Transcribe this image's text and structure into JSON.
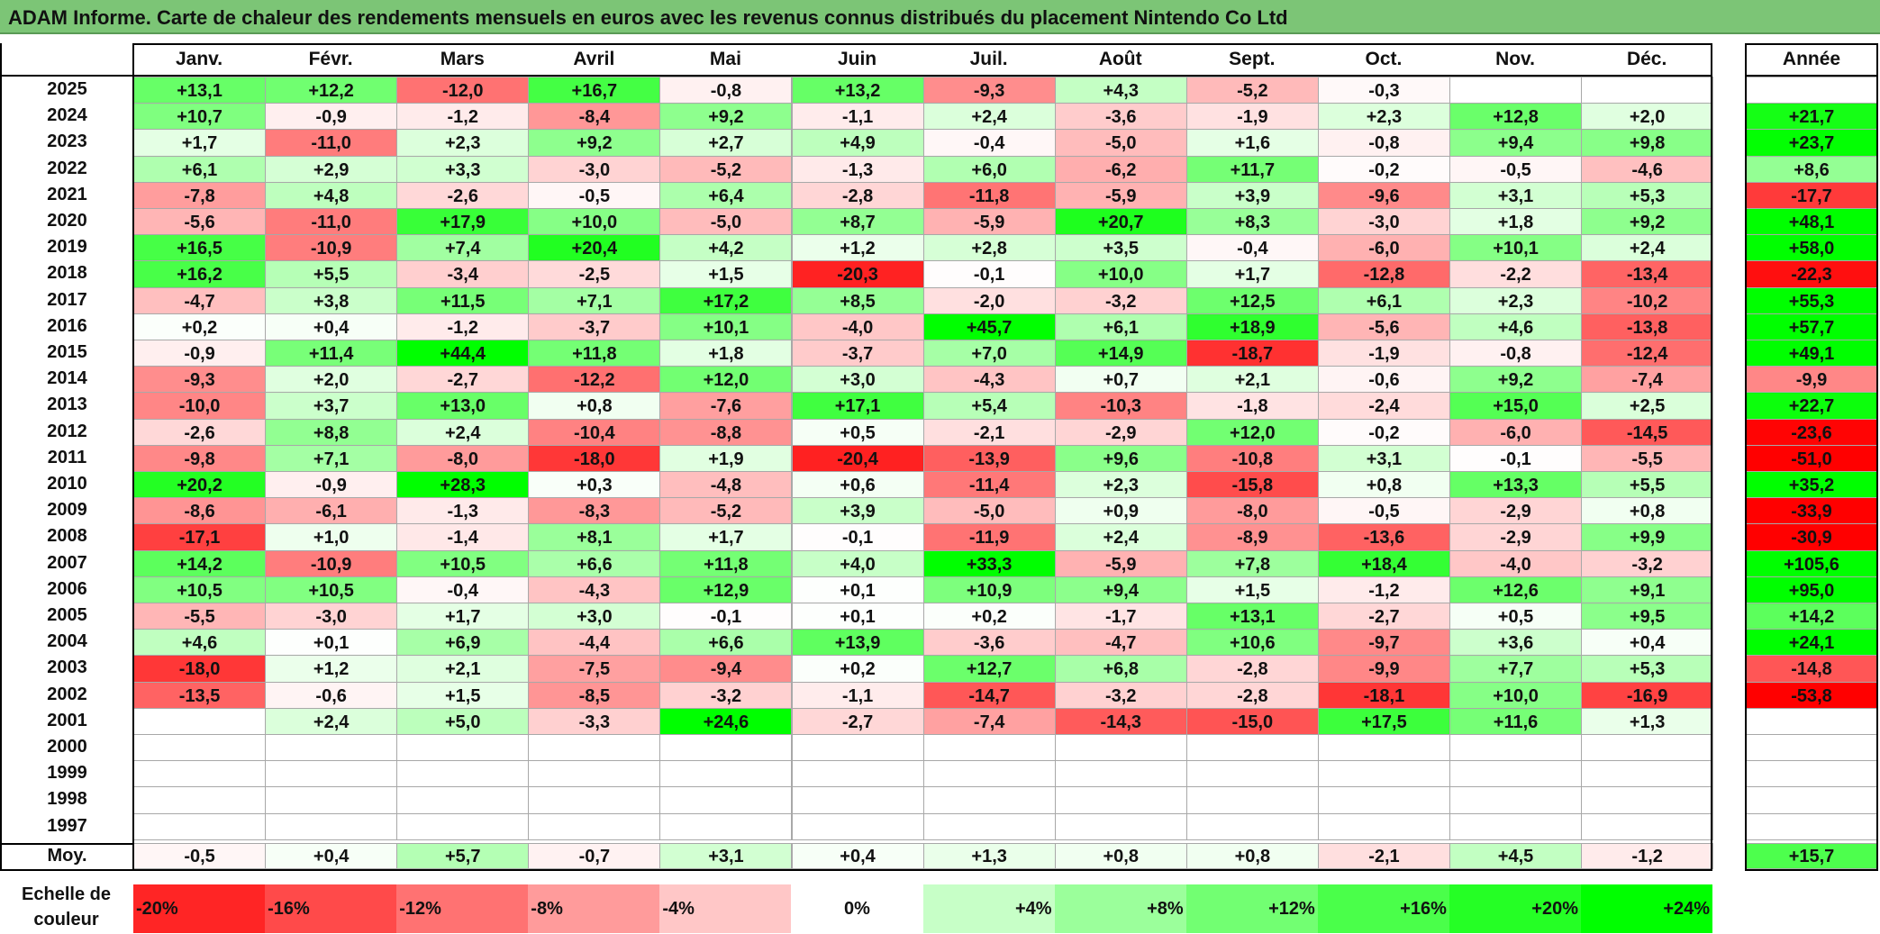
{
  "title": "ADAM Informe. Carte de chaleur des rendements mensuels en euros avec les revenus connus distribués du placement Nintendo Co Ltd",
  "colors": {
    "title_bg": "#7cc576",
    "positive": "#00ff00",
    "negative": "#ff0000",
    "neutral": "#ffffff"
  },
  "chart_data": {
    "type": "heatmap",
    "title": "ADAM Informe. Carte de chaleur des rendements mensuels en euros avec les revenus connus distribués du placement Nintendo Co Ltd",
    "columns": [
      "Janv.",
      "Févr.",
      "Mars",
      "Avril",
      "Mai",
      "Juin",
      "Juil.",
      "Août",
      "Sept.",
      "Oct.",
      "Nov.",
      "Déc."
    ],
    "year_column_label": "Année",
    "rows": [
      {
        "year": "2025",
        "values": [
          "+13,1",
          "+12,2",
          "-12,0",
          "+16,7",
          "-0,8",
          "+13,2",
          "-9,3",
          "+4,3",
          "-5,2",
          "-0,3",
          "",
          ""
        ],
        "annual": ""
      },
      {
        "year": "2024",
        "values": [
          "+10,7",
          "-0,9",
          "-1,2",
          "-8,4",
          "+9,2",
          "-1,1",
          "+2,4",
          "-3,6",
          "-1,9",
          "+2,3",
          "+12,8",
          "+2,0"
        ],
        "annual": "+21,7"
      },
      {
        "year": "2023",
        "values": [
          "+1,7",
          "-11,0",
          "+2,3",
          "+9,2",
          "+2,7",
          "+4,9",
          "-0,4",
          "-5,0",
          "+1,6",
          "-0,8",
          "+9,4",
          "+9,8"
        ],
        "annual": "+23,7"
      },
      {
        "year": "2022",
        "values": [
          "+6,1",
          "+2,9",
          "+3,3",
          "-3,0",
          "-5,2",
          "-1,3",
          "+6,0",
          "-6,2",
          "+11,7",
          "-0,2",
          "-0,5",
          "-4,6"
        ],
        "annual": "+8,6"
      },
      {
        "year": "2021",
        "values": [
          "-7,8",
          "+4,8",
          "-2,6",
          "-0,5",
          "+6,4",
          "-2,8",
          "-11,8",
          "-5,9",
          "+3,9",
          "-9,6",
          "+3,1",
          "+5,3"
        ],
        "annual": "-17,7"
      },
      {
        "year": "2020",
        "values": [
          "-5,6",
          "-11,0",
          "+17,9",
          "+10,0",
          "-5,0",
          "+8,7",
          "-5,9",
          "+20,7",
          "+8,3",
          "-3,0",
          "+1,8",
          "+9,2"
        ],
        "annual": "+48,1"
      },
      {
        "year": "2019",
        "values": [
          "+16,5",
          "-10,9",
          "+7,4",
          "+20,4",
          "+4,2",
          "+1,2",
          "+2,8",
          "+3,5",
          "-0,4",
          "-6,0",
          "+10,1",
          "+2,4"
        ],
        "annual": "+58,0"
      },
      {
        "year": "2018",
        "values": [
          "+16,2",
          "+5,5",
          "-3,4",
          "-2,5",
          "+1,5",
          "-20,3",
          "-0,1",
          "+10,0",
          "+1,7",
          "-12,8",
          "-2,2",
          "-13,4"
        ],
        "annual": "-22,3"
      },
      {
        "year": "2017",
        "values": [
          "-4,7",
          "+3,8",
          "+11,5",
          "+7,1",
          "+17,2",
          "+8,5",
          "-2,0",
          "-3,2",
          "+12,5",
          "+6,1",
          "+2,3",
          "-10,2"
        ],
        "annual": "+55,3"
      },
      {
        "year": "2016",
        "values": [
          "+0,2",
          "+0,4",
          "-1,2",
          "-3,7",
          "+10,1",
          "-4,0",
          "+45,7",
          "+6,1",
          "+18,9",
          "-5,6",
          "+4,6",
          "-13,8"
        ],
        "annual": "+57,7"
      },
      {
        "year": "2015",
        "values": [
          "-0,9",
          "+11,4",
          "+44,4",
          "+11,8",
          "+1,8",
          "-3,7",
          "+7,0",
          "+14,9",
          "-18,7",
          "-1,9",
          "-0,8",
          "-12,4"
        ],
        "annual": "+49,1"
      },
      {
        "year": "2014",
        "values": [
          "-9,3",
          "+2,0",
          "-2,7",
          "-12,2",
          "+12,0",
          "+3,0",
          "-4,3",
          "+0,7",
          "+2,1",
          "-0,6",
          "+9,2",
          "-7,4"
        ],
        "annual": "-9,9"
      },
      {
        "year": "2013",
        "values": [
          "-10,0",
          "+3,7",
          "+13,0",
          "+0,8",
          "-7,6",
          "+17,1",
          "+5,4",
          "-10,3",
          "-1,8",
          "-2,4",
          "+15,0",
          "+2,5"
        ],
        "annual": "+22,7"
      },
      {
        "year": "2012",
        "values": [
          "-2,6",
          "+8,8",
          "+2,4",
          "-10,4",
          "-8,8",
          "+0,5",
          "-2,1",
          "-2,9",
          "+12,0",
          "-0,2",
          "-6,0",
          "-14,5"
        ],
        "annual": "-23,6"
      },
      {
        "year": "2011",
        "values": [
          "-9,8",
          "+7,1",
          "-8,0",
          "-18,0",
          "+1,9",
          "-20,4",
          "-13,9",
          "+9,6",
          "-10,8",
          "+3,1",
          "-0,1",
          "-5,5"
        ],
        "annual": "-51,0"
      },
      {
        "year": "2010",
        "values": [
          "+20,2",
          "-0,9",
          "+28,3",
          "+0,3",
          "-4,8",
          "+0,6",
          "-11,4",
          "+2,3",
          "-15,8",
          "+0,8",
          "+13,3",
          "+5,5"
        ],
        "annual": "+35,2"
      },
      {
        "year": "2009",
        "values": [
          "-8,6",
          "-6,1",
          "-1,3",
          "-8,3",
          "-5,2",
          "+3,9",
          "-5,0",
          "+0,9",
          "-8,0",
          "-0,5",
          "-2,9",
          "+0,8"
        ],
        "annual": "-33,9"
      },
      {
        "year": "2008",
        "values": [
          "-17,1",
          "+1,0",
          "-1,4",
          "+8,1",
          "+1,7",
          "-0,1",
          "-11,9",
          "+2,4",
          "-8,9",
          "-13,6",
          "-2,9",
          "+9,9"
        ],
        "annual": "-30,9"
      },
      {
        "year": "2007",
        "values": [
          "+14,2",
          "-10,9",
          "+10,5",
          "+6,6",
          "+11,8",
          "+4,0",
          "+33,3",
          "-5,9",
          "+7,8",
          "+18,4",
          "-4,0",
          "-3,2"
        ],
        "annual": "+105,6"
      },
      {
        "year": "2006",
        "values": [
          "+10,5",
          "+10,5",
          "-0,4",
          "-4,3",
          "+12,9",
          "+0,1",
          "+10,9",
          "+9,4",
          "+1,5",
          "-1,2",
          "+12,6",
          "+9,1"
        ],
        "annual": "+95,0"
      },
      {
        "year": "2005",
        "values": [
          "-5,5",
          "-3,0",
          "+1,7",
          "+3,0",
          "-0,1",
          "+0,1",
          "+0,2",
          "-1,7",
          "+13,1",
          "-2,7",
          "+0,5",
          "+9,5"
        ],
        "annual": "+14,2"
      },
      {
        "year": "2004",
        "values": [
          "+4,6",
          "+0,1",
          "+6,9",
          "-4,4",
          "+6,6",
          "+13,9",
          "-3,6",
          "-4,7",
          "+10,6",
          "-9,7",
          "+3,6",
          "+0,4"
        ],
        "annual": "+24,1"
      },
      {
        "year": "2003",
        "values": [
          "-18,0",
          "+1,2",
          "+2,1",
          "-7,5",
          "-9,4",
          "+0,2",
          "+12,7",
          "+6,8",
          "-2,8",
          "-9,9",
          "+7,7",
          "+5,3"
        ],
        "annual": "-14,8"
      },
      {
        "year": "2002",
        "values": [
          "-13,5",
          "-0,6",
          "+1,5",
          "-8,5",
          "-3,2",
          "-1,1",
          "-14,7",
          "-3,2",
          "-2,8",
          "-18,1",
          "+10,0",
          "-16,9"
        ],
        "annual": "-53,8"
      },
      {
        "year": "2001",
        "values": [
          "",
          "+2,4",
          "+5,0",
          "-3,3",
          "+24,6",
          "-2,7",
          "-7,4",
          "-14,3",
          "-15,0",
          "+17,5",
          "+11,6",
          "+1,3"
        ],
        "annual": ""
      },
      {
        "year": "2000",
        "values": [
          "",
          "",
          "",
          "",
          "",
          "",
          "",
          "",
          "",
          "",
          "",
          ""
        ],
        "annual": ""
      },
      {
        "year": "1999",
        "values": [
          "",
          "",
          "",
          "",
          "",
          "",
          "",
          "",
          "",
          "",
          "",
          ""
        ],
        "annual": ""
      },
      {
        "year": "1998",
        "values": [
          "",
          "",
          "",
          "",
          "",
          "",
          "",
          "",
          "",
          "",
          "",
          ""
        ],
        "annual": ""
      },
      {
        "year": "1997",
        "values": [
          "",
          "",
          "",
          "",
          "",
          "",
          "",
          "",
          "",
          "",
          "",
          ""
        ],
        "annual": ""
      }
    ],
    "average": {
      "label": "Moy.",
      "values": [
        "-0,5",
        "+0,4",
        "+5,7",
        "-0,7",
        "+3,1",
        "+0,4",
        "+1,3",
        "+0,8",
        "+0,8",
        "-2,1",
        "+4,5",
        "-1,2"
      ],
      "annual": "+15,7"
    },
    "scale": {
      "label_line1": "Echelle de",
      "label_line2": "couleur",
      "steps": [
        "-20%",
        "-16%",
        "-12%",
        "-8%",
        "-4%",
        "0%",
        "+4%",
        "+8%",
        "+12%",
        "+16%",
        "+20%",
        "+24%"
      ],
      "values": [
        -20,
        -16,
        -12,
        -8,
        -4,
        0,
        4,
        8,
        12,
        16,
        20,
        24
      ]
    }
  }
}
